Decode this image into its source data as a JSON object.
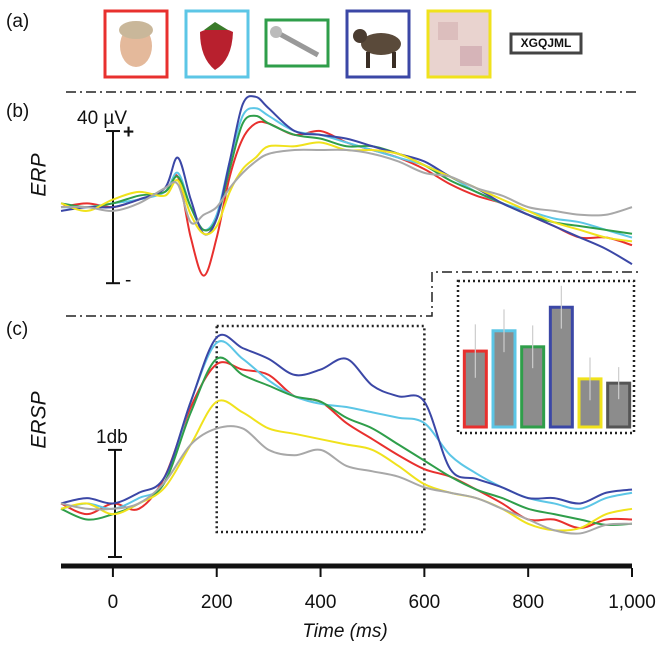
{
  "stimuli": {
    "panel": "(a)",
    "word": "XGQJML"
  },
  "chart_data": [
    {
      "type": "line",
      "panel": "(b)",
      "ylabel": "ERP",
      "scale_bar": {
        "value": 40,
        "label": "40 µV"
      },
      "plus": "+",
      "minus": "-",
      "x": [
        -100,
        -50,
        0,
        50,
        100,
        125,
        150,
        175,
        200,
        225,
        250,
        275,
        300,
        350,
        400,
        450,
        500,
        550,
        600,
        650,
        700,
        750,
        800,
        850,
        900,
        950,
        1000
      ],
      "xlim": [
        -100,
        1000
      ],
      "ylim": [
        -21,
        30
      ],
      "series": [
        {
          "color": "#e8302e",
          "values": [
            0,
            1,
            0,
            2,
            4,
            8,
            -8,
            -18,
            -8,
            8,
            18,
            22,
            22,
            19,
            20,
            17,
            15,
            13,
            10,
            6,
            3,
            1,
            -2,
            -5,
            -8,
            -8,
            -10
          ]
        },
        {
          "color": "#5cc6e6",
          "values": [
            0,
            0,
            1,
            2,
            4,
            9,
            0,
            -6,
            -2,
            12,
            24,
            26,
            24,
            20,
            19,
            17,
            15,
            13,
            11,
            8,
            4,
            1,
            -1,
            -3,
            -4,
            -6,
            -8
          ]
        },
        {
          "color": "#2f9e4a",
          "values": [
            1,
            0,
            1,
            3,
            4,
            8,
            0,
            -6,
            -3,
            10,
            22,
            24,
            22,
            19,
            18,
            16,
            16,
            14,
            11,
            7,
            4,
            1,
            -2,
            -4,
            -5,
            -6,
            -7
          ]
        },
        {
          "color": "#3b47a6",
          "values": [
            -1,
            0,
            0,
            2,
            5,
            13,
            2,
            -7,
            -3,
            12,
            27,
            29,
            26,
            20,
            19,
            18,
            16,
            14,
            12,
            8,
            5,
            1,
            -2,
            -5,
            -8,
            -11,
            -15
          ]
        },
        {
          "color": "#f0e21c",
          "values": [
            1,
            -1,
            2,
            4,
            3,
            7,
            -2,
            -7,
            -5,
            4,
            10,
            13,
            16,
            16,
            17,
            15,
            15,
            14,
            11,
            8,
            5,
            2,
            -1,
            -4,
            -6,
            -8,
            -9
          ]
        },
        {
          "color": "#a8a8a8",
          "values": [
            0,
            0,
            -1,
            1,
            5,
            6,
            -4,
            -2,
            0,
            5,
            9,
            12,
            14,
            15,
            15,
            15,
            14,
            12,
            9,
            8,
            5,
            3,
            0,
            -1,
            -2,
            -2,
            0
          ]
        }
      ]
    },
    {
      "type": "line",
      "panel": "(c)",
      "ylabel": "ERSP",
      "scale_bar": {
        "value": 1,
        "label": "1db"
      },
      "x": [
        -100,
        -50,
        0,
        50,
        100,
        150,
        200,
        250,
        300,
        350,
        400,
        450,
        500,
        550,
        600,
        650,
        700,
        750,
        800,
        850,
        900,
        950,
        1000
      ],
      "xlim": [
        -100,
        1000
      ],
      "ylim": [
        -0.45,
        1.8
      ],
      "xticks": [
        0,
        200,
        400,
        600,
        800,
        {
          "value": 1000,
          "label": "1,000"
        }
      ],
      "xlabel": "Time (ms)",
      "window": [
        200,
        600
      ],
      "series": [
        {
          "color": "#e8302e",
          "values": [
            0.05,
            -0.05,
            0.05,
            0.0,
            0.3,
            0.95,
            1.35,
            1.3,
            1.25,
            1.05,
            1.0,
            0.8,
            0.65,
            0.5,
            0.37,
            0.3,
            0.18,
            0.05,
            -0.1,
            -0.1,
            -0.18,
            -0.1,
            -0.1
          ]
        },
        {
          "color": "#5cc6e6",
          "values": [
            0.0,
            0.05,
            0.0,
            0.1,
            0.25,
            1.0,
            1.55,
            1.4,
            1.2,
            1.05,
            0.98,
            0.95,
            0.9,
            0.85,
            0.8,
            0.5,
            0.33,
            0.2,
            0.1,
            0.05,
            0.0,
            0.1,
            0.15
          ]
        },
        {
          "color": "#2f9e4a",
          "values": [
            0.0,
            -0.1,
            -0.05,
            0.05,
            0.25,
            0.9,
            1.4,
            1.25,
            1.15,
            1.05,
            1.0,
            0.85,
            0.75,
            0.6,
            0.45,
            0.3,
            0.18,
            0.1,
            0.0,
            -0.05,
            -0.1,
            -0.15,
            -0.14
          ]
        },
        {
          "color": "#3b47a6",
          "values": [
            0.05,
            0.1,
            0.05,
            0.15,
            0.3,
            1.0,
            1.6,
            1.5,
            1.4,
            1.25,
            1.3,
            1.4,
            1.15,
            1.05,
            1.0,
            0.37,
            0.28,
            0.2,
            0.1,
            0.1,
            0.05,
            0.15,
            0.18
          ]
        },
        {
          "color": "#f0e21c",
          "values": [
            0.0,
            0.05,
            -0.05,
            0.05,
            0.2,
            0.6,
            1.0,
            0.9,
            0.75,
            0.7,
            0.65,
            0.6,
            0.55,
            0.4,
            0.23,
            0.15,
            0.1,
            0.0,
            -0.14,
            -0.2,
            -0.18,
            -0.05,
            0.0
          ]
        },
        {
          "color": "#a8a8a8",
          "values": [
            0.05,
            0.0,
            0.0,
            0.05,
            0.25,
            0.6,
            0.75,
            0.75,
            0.55,
            0.5,
            0.55,
            0.4,
            0.35,
            0.3,
            0.2,
            0.15,
            0.1,
            0.0,
            -0.1,
            -0.2,
            -0.23,
            -0.15,
            -0.14
          ]
        }
      ]
    },
    {
      "type": "bar",
      "ylim": [
        0,
        1.3
      ],
      "fill": "#8c8c8c",
      "colors": [
        "#e8302e",
        "#5cc6e6",
        "#2f9e4a",
        "#3b47a6",
        "#f0e21c",
        "#555555"
      ],
      "values": [
        0.71,
        0.9,
        0.75,
        1.12,
        0.45,
        0.41
      ],
      "errors": [
        0.25,
        0.2,
        0.2,
        0.2,
        0.2,
        0.15
      ]
    }
  ]
}
